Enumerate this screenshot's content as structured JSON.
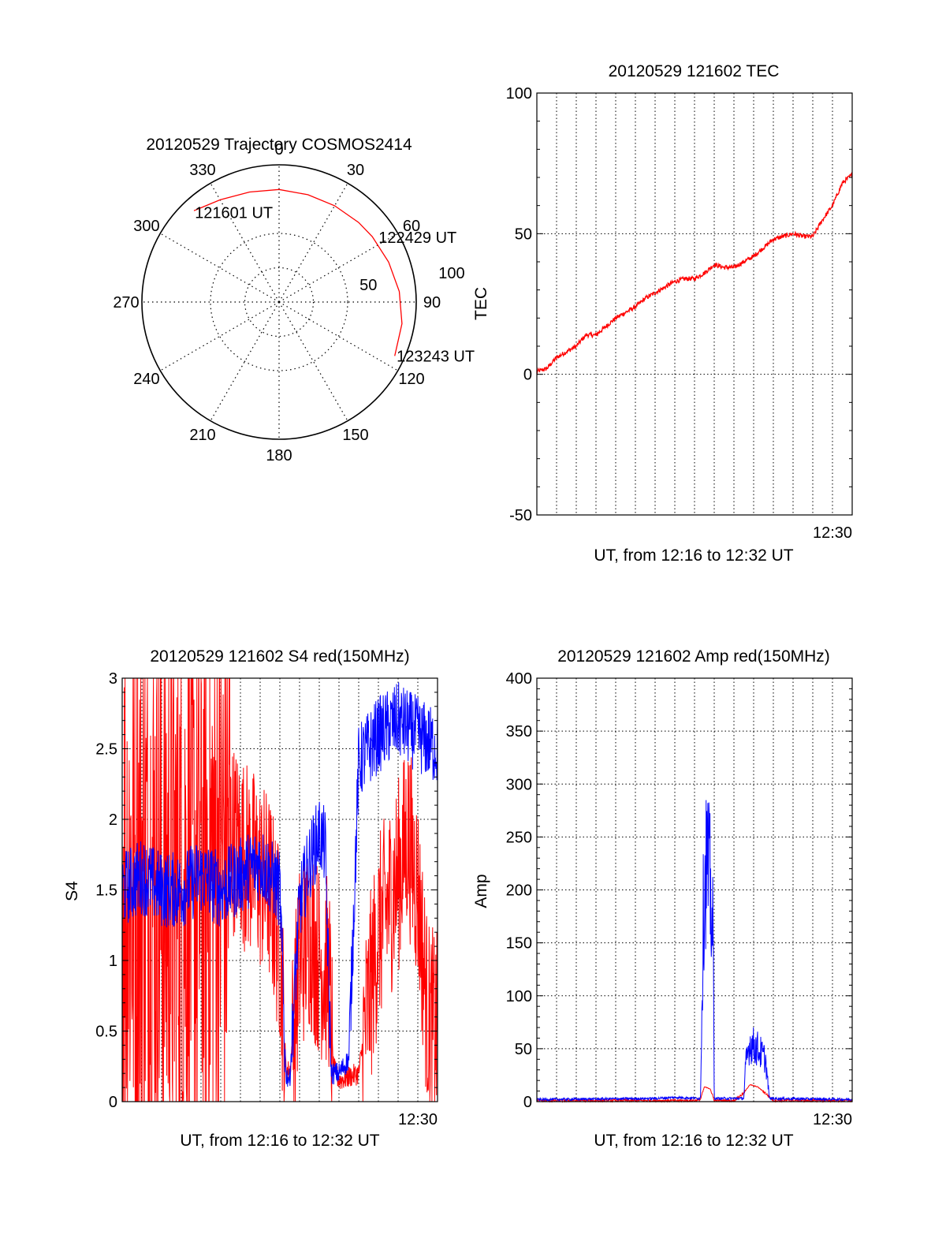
{
  "colors": {
    "red": "#ff0000",
    "blue": "#0000ff",
    "axis": "#000000",
    "grid": "#000000"
  },
  "polar": {
    "title": "20120529 Trajectory COSMOS2414",
    "angle_labels": [
      {
        "deg": 0,
        "text": "0"
      },
      {
        "deg": 30,
        "text": "30"
      },
      {
        "deg": 60,
        "text": "60"
      },
      {
        "deg": 90,
        "text": "90"
      },
      {
        "deg": 120,
        "text": "120"
      },
      {
        "deg": 150,
        "text": "150"
      },
      {
        "deg": 180,
        "text": "180"
      },
      {
        "deg": 210,
        "text": "210"
      },
      {
        "deg": 240,
        "text": "240"
      },
      {
        "deg": 270,
        "text": "270"
      },
      {
        "deg": 300,
        "text": "300"
      },
      {
        "deg": 330,
        "text": "330"
      }
    ],
    "radial_labels": [
      {
        "r": 50,
        "text": "50"
      },
      {
        "r": 100,
        "text": "100"
      }
    ],
    "r_max": 100,
    "annotations": [
      {
        "text": "121601 UT",
        "azimuth": 317,
        "zenith_angle": 90
      },
      {
        "text": "122429 UT",
        "azimuth": 55,
        "zenith_angle": 83
      },
      {
        "text": "123243 UT",
        "azimuth": 115,
        "zenith_angle": 92
      }
    ]
  },
  "chart_data": [
    {
      "id": "polar",
      "type": "scatter",
      "title": "20120529 Trajectory COSMOS2414",
      "coordinate_system": "polar (azimuth deg clockwise from north, radius = zenith angle)",
      "series": [
        {
          "name": "",
          "color": "red",
          "azimuth": [
            -43,
            -30,
            -15,
            0,
            15,
            30,
            45,
            55,
            70,
            85,
            100,
            115
          ],
          "radius": [
            91,
            86,
            83,
            82,
            81,
            81,
            82,
            83,
            85,
            88,
            91,
            93
          ]
        }
      ]
    },
    {
      "id": "tec",
      "type": "line",
      "title": "20120529 121602 TEC",
      "xlabel": "UT, from 12:16 to 12:32 UT",
      "ylabel": "TEC",
      "xlim_minutes": [
        12.0,
        28.0
      ],
      "ylim": [
        -50,
        100
      ],
      "yticks": [
        "-50",
        "0",
        "50",
        "100"
      ],
      "xtick_labels": [
        {
          "minute": 27.0,
          "text": "12:30"
        }
      ],
      "grid": true,
      "series": [
        {
          "name": "",
          "color": "red",
          "x": [
            12.0,
            12.5,
            13.0,
            13.5,
            14.0,
            14.5,
            15.0,
            15.5,
            16.0,
            16.5,
            17.0,
            17.5,
            18.0,
            18.5,
            19.0,
            19.5,
            20.0,
            20.5,
            21.0,
            21.5,
            22.0,
            22.5,
            23.0,
            23.5,
            24.0,
            24.5,
            25.0,
            25.5,
            26.0,
            26.5,
            27.0,
            27.5,
            28.0
          ],
          "y": [
            1,
            2,
            6,
            8,
            10,
            14,
            14,
            17,
            20,
            22,
            24,
            27,
            29,
            31,
            33,
            34,
            34,
            36,
            39,
            38,
            38,
            40,
            42,
            45,
            48,
            49,
            50,
            49,
            49,
            55,
            60,
            68,
            71
          ]
        }
      ]
    },
    {
      "id": "s4",
      "type": "line",
      "title": "20120529 121602 S4 red(150MHz)",
      "xlabel": "UT, from 12:16 to 12:32 UT",
      "ylabel": "S4",
      "xlim_minutes": [
        12.0,
        28.0
      ],
      "ylim": [
        0,
        3
      ],
      "yticks": [
        "0",
        "0.5",
        "1",
        "1.5",
        "2",
        "2.5",
        "3"
      ],
      "xtick_labels": [
        {
          "minute": 27.0,
          "text": "12:30"
        }
      ],
      "grid": true,
      "series": [
        {
          "name": "",
          "color": "red",
          "noise": 1.4,
          "x": [
            12.0,
            13.0,
            14.0,
            15.0,
            16.0,
            17.0,
            17.5,
            19.5,
            20.0,
            20.3,
            20.5,
            21.0,
            21.5,
            22.0,
            22.5,
            22.7,
            23.0,
            24.0,
            25.0,
            26.0,
            26.5,
            27.0,
            27.5,
            28.0
          ],
          "y": [
            1.6,
            1.6,
            1.5,
            1.5,
            1.6,
            1.7,
            1.9,
            1.5,
            1.1,
            0.25,
            0.2,
            1.0,
            1.2,
            1.0,
            0.9,
            0.25,
            0.15,
            0.2,
            1.2,
            1.6,
            1.9,
            1.5,
            0.6,
            0.5
          ]
        },
        {
          "name": "",
          "color": "blue",
          "noise": 0.55,
          "x": [
            12.0,
            13.0,
            14.0,
            15.0,
            16.0,
            17.0,
            18.0,
            19.0,
            19.5,
            20.0,
            20.3,
            20.5,
            21.0,
            21.5,
            22.0,
            22.3,
            22.6,
            23.0,
            23.5,
            24.0,
            25.0,
            26.0,
            27.0,
            28.0
          ],
          "y": [
            1.5,
            1.6,
            1.5,
            1.5,
            1.6,
            1.5,
            1.6,
            1.7,
            1.6,
            1.5,
            0.2,
            0.15,
            1.4,
            1.7,
            1.9,
            1.8,
            0.2,
            0.2,
            0.3,
            2.4,
            2.6,
            2.7,
            2.6,
            2.5
          ]
        }
      ]
    },
    {
      "id": "amp",
      "type": "line",
      "title": "20120529 121602 Amp red(150MHz)",
      "xlabel": "UT, from 12:16 to 12:32 UT",
      "ylabel": "Amp",
      "xlim_minutes": [
        12.0,
        28.0
      ],
      "ylim": [
        0,
        400
      ],
      "yticks": [
        "0",
        "50",
        "100",
        "150",
        "200",
        "250",
        "300",
        "350",
        "400"
      ],
      "xtick_labels": [
        {
          "minute": 27.0,
          "text": "12:30"
        }
      ],
      "grid": true,
      "series": [
        {
          "name": "",
          "color": "red",
          "noise": 5,
          "x": [
            12.0,
            20.0,
            20.3,
            20.5,
            20.8,
            21.0,
            22.0,
            22.5,
            22.8,
            23.2,
            23.6,
            24.0,
            28.0
          ],
          "y": [
            1,
            1,
            2,
            14,
            12,
            1,
            1,
            8,
            16,
            14,
            8,
            1,
            1
          ]
        },
        {
          "name": "",
          "color": "blue",
          "noise": 70,
          "x": [
            12.0,
            18.0,
            19.0,
            20.3,
            20.45,
            20.6,
            20.8,
            20.95,
            21.0,
            22.5,
            22.6,
            22.8,
            23.2,
            23.6,
            23.8,
            28.0
          ],
          "y": [
            2,
            3,
            4,
            3,
            180,
            230,
            200,
            150,
            3,
            3,
            35,
            55,
            50,
            40,
            3,
            2
          ]
        }
      ]
    }
  ]
}
